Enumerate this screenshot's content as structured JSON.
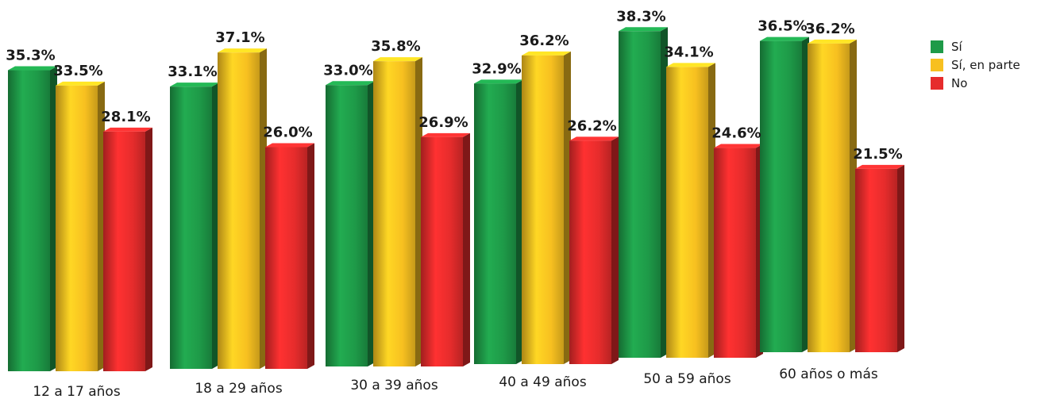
{
  "chart_data": {
    "type": "bar",
    "categories": [
      "12 a 17 años",
      "18 a 29 años",
      "30 a 39 años",
      "40 a 49 años",
      "50 a 59 años",
      "60 años o más"
    ],
    "series": [
      {
        "name": "Sí",
        "color": "#1e9a48",
        "values": [
          35.3,
          33.1,
          33.0,
          32.9,
          38.3,
          36.5
        ],
        "labels": [
          "35.3%",
          "33.1%",
          "33.0%",
          "32.9%",
          "38.3%",
          "36.5%"
        ]
      },
      {
        "name": "Sí, en parte",
        "color": "#f7c020",
        "values": [
          33.5,
          37.1,
          35.8,
          36.2,
          34.1,
          36.2
        ],
        "labels": [
          "33.5%",
          "37.1%",
          "35.8%",
          "36.2%",
          "34.1%",
          "36.2%"
        ]
      },
      {
        "name": "No",
        "color": "#e62c2c",
        "values": [
          28.1,
          26.0,
          26.9,
          26.2,
          24.6,
          21.5
        ],
        "labels": [
          "28.1%",
          "26.0%",
          "26.9%",
          "26.2%",
          "24.6%",
          "21.5%"
        ]
      }
    ],
    "title": "",
    "xlabel": "",
    "ylabel": "",
    "ylim": [
      0,
      40
    ],
    "legend_position": "top-right",
    "grid": false
  }
}
